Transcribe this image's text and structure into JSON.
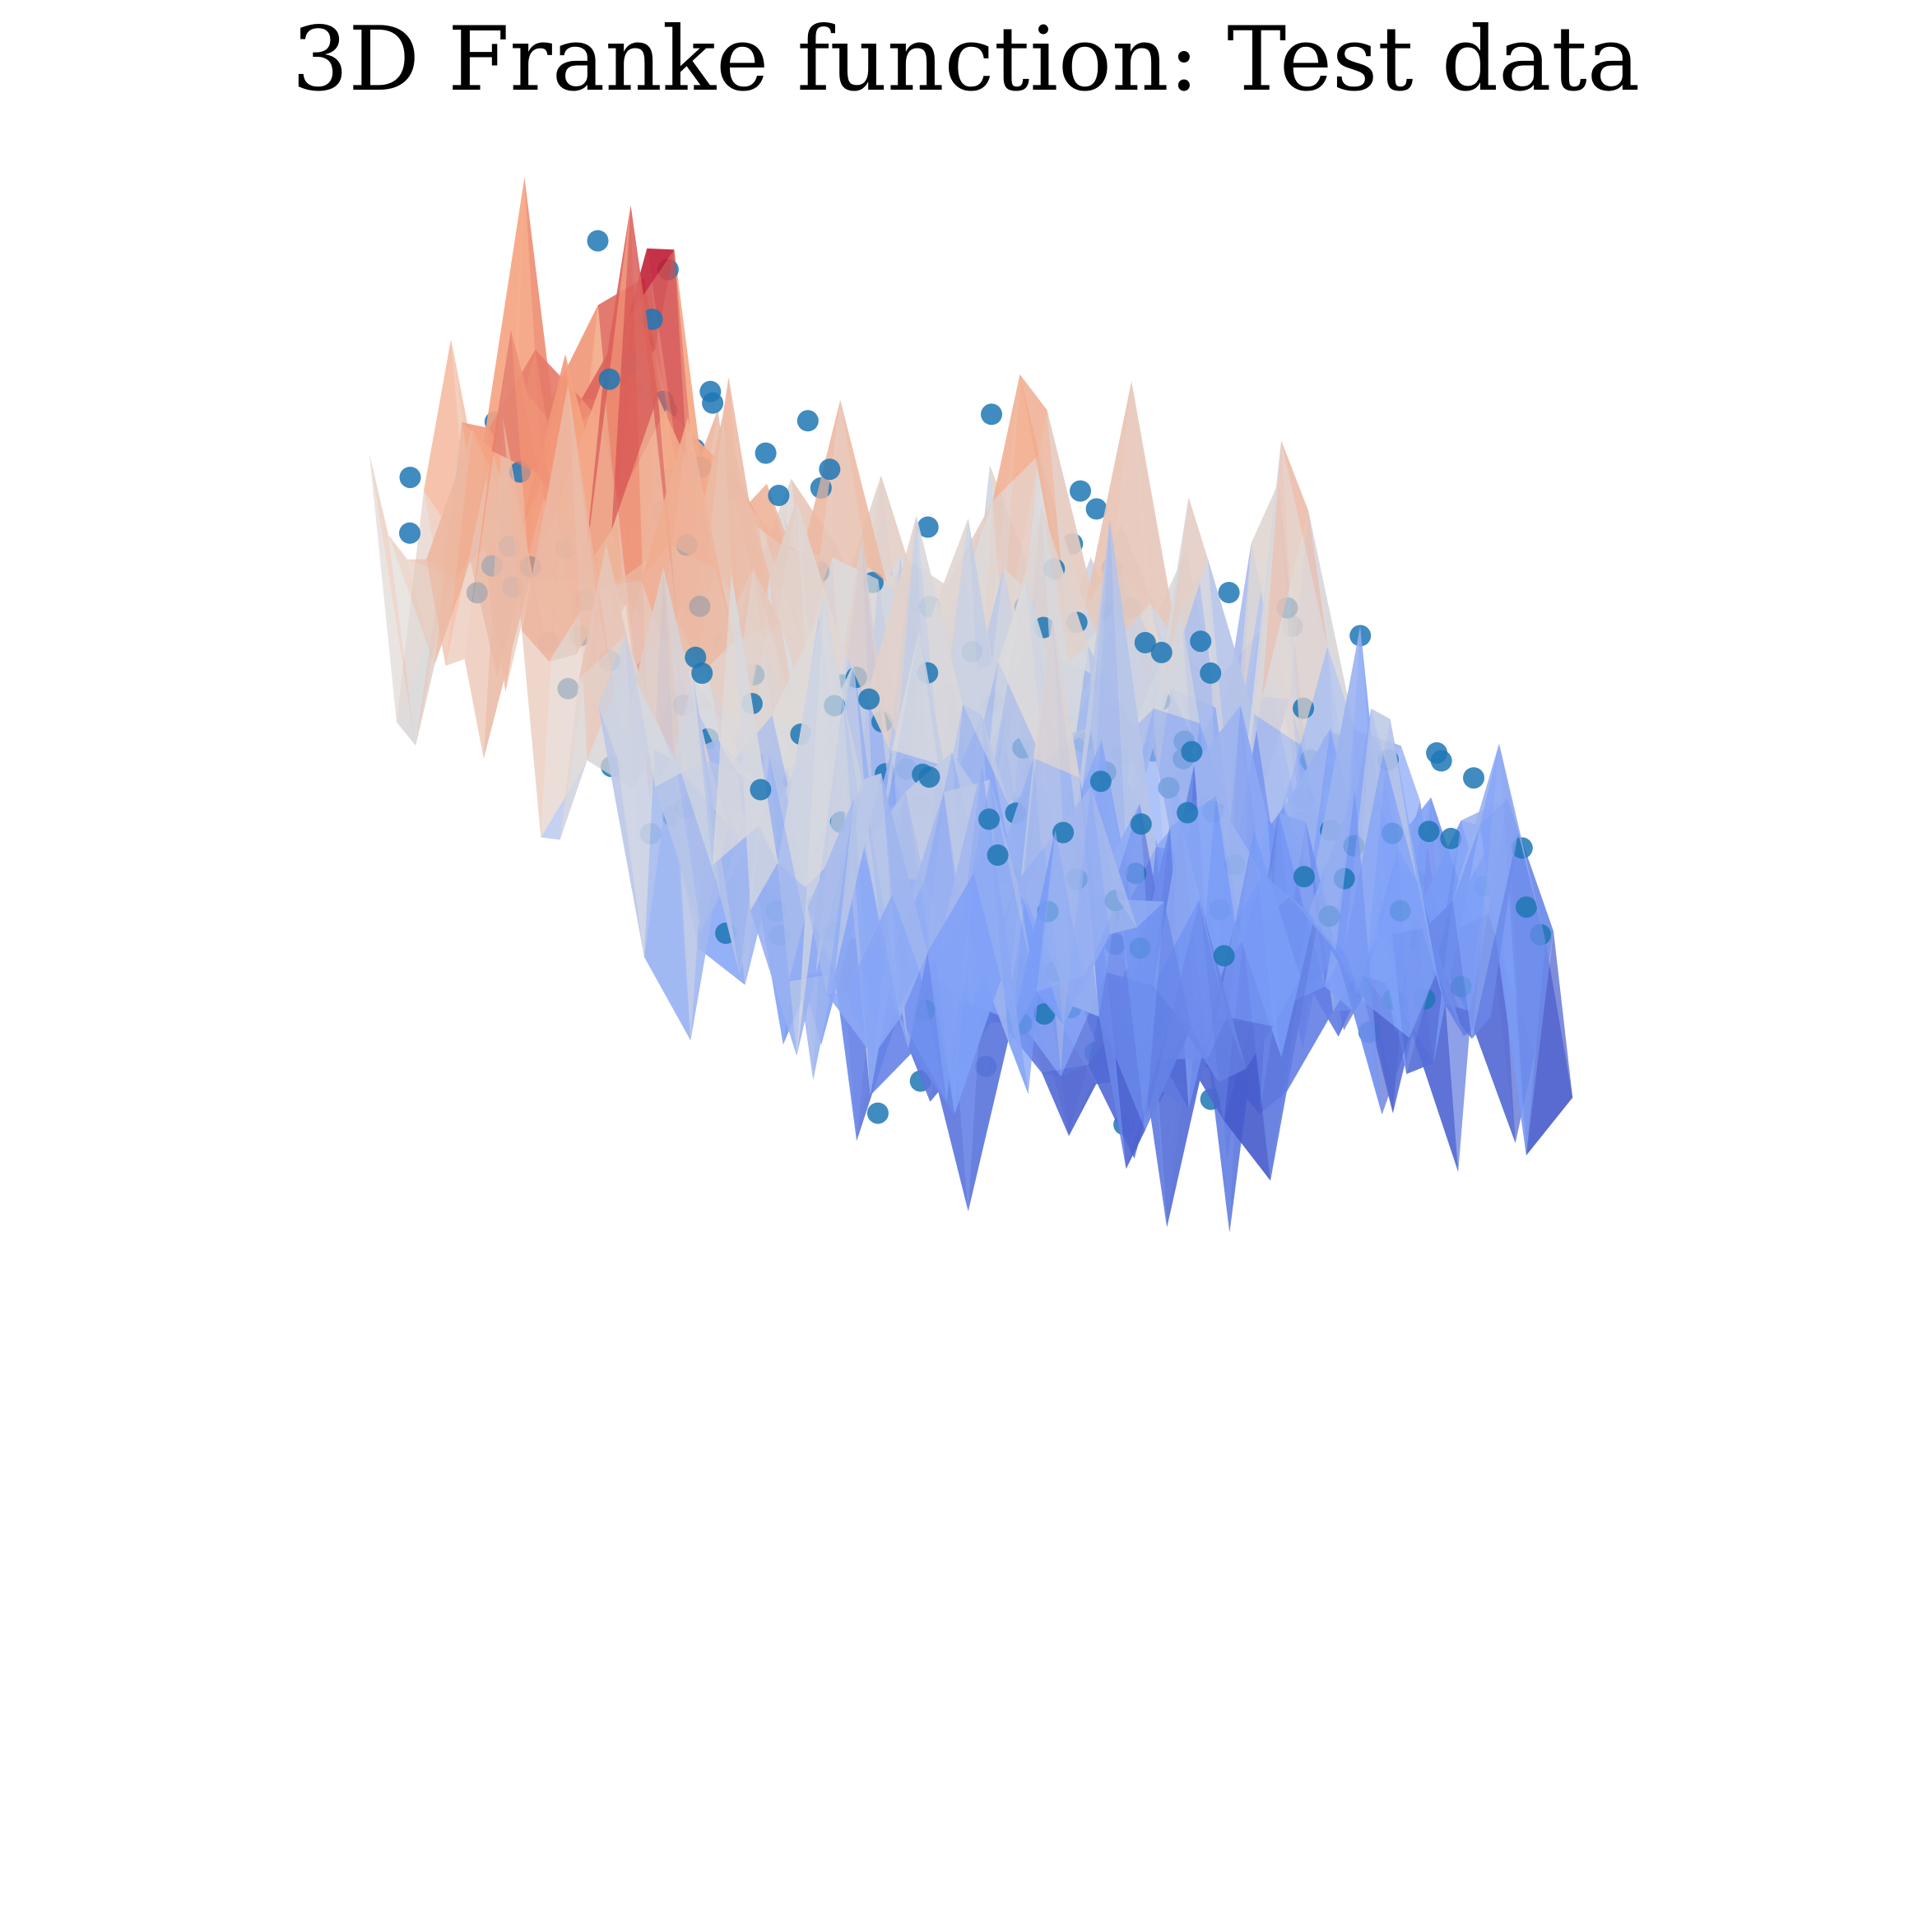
{
  "chart_data": {
    "type": "surface3d+scatter3d",
    "title": "3D Franke function: Test data",
    "xlabel": "",
    "ylabel": "",
    "zlabel": "",
    "axes_visible": false,
    "grid": false,
    "legend": "none",
    "surface": {
      "function": "Franke",
      "noise_amplitude": 0.25,
      "colormap": "coolwarm",
      "alpha": 0.7,
      "x_range": [
        0,
        1
      ],
      "y_range": [
        0,
        1
      ],
      "z_range": [
        -0.3,
        1.5
      ],
      "grid_size": 26
    },
    "test_points": {
      "color": "#1f77b4",
      "count": 250,
      "x_range": [
        0,
        1
      ],
      "y_range": [
        0,
        1
      ]
    },
    "view": {
      "elev_deg": 12,
      "azim_deg": 35
    }
  }
}
